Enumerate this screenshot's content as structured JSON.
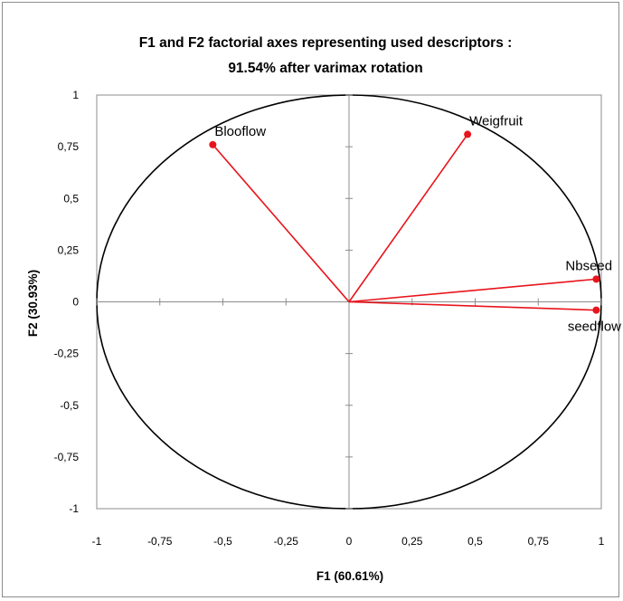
{
  "chart_data": {
    "type": "scatter",
    "title_lines": [
      "F1 and F2 factorial axes representing  used descriptors :",
      "91.54% after varimax rotation"
    ],
    "xlabel": "F1 (60.61%)",
    "ylabel": "F2 (30.93%)",
    "xlim": [
      -1,
      1
    ],
    "ylim": [
      -1,
      1
    ],
    "x_ticks": [
      -1,
      -0.75,
      -0.5,
      -0.25,
      0,
      0.25,
      0.5,
      0.75,
      1
    ],
    "x_tick_labels": [
      "-1",
      "-0,75",
      "-0,5",
      "-0,25",
      "0",
      "0,25",
      "0,5",
      "0,75",
      "1"
    ],
    "y_ticks": [
      1,
      0.75,
      0.5,
      0.25,
      0,
      -0.25,
      -0.5,
      -0.75,
      -1
    ],
    "y_tick_labels": [
      "1",
      "0,75",
      "0,5",
      "0,25",
      "0",
      "-0,25",
      "-0,5",
      "-0,75",
      "-1"
    ],
    "unit_circle": true,
    "vector_color": "#e8141b",
    "points": [
      {
        "name": "Blooflow",
        "x": -0.54,
        "y": 0.76
      },
      {
        "name": "Weigfruit",
        "x": 0.47,
        "y": 0.81
      },
      {
        "name": "Nbseed",
        "x": 0.98,
        "y": 0.11
      },
      {
        "name": "seedflow",
        "x": 0.98,
        "y": -0.04
      }
    ]
  }
}
